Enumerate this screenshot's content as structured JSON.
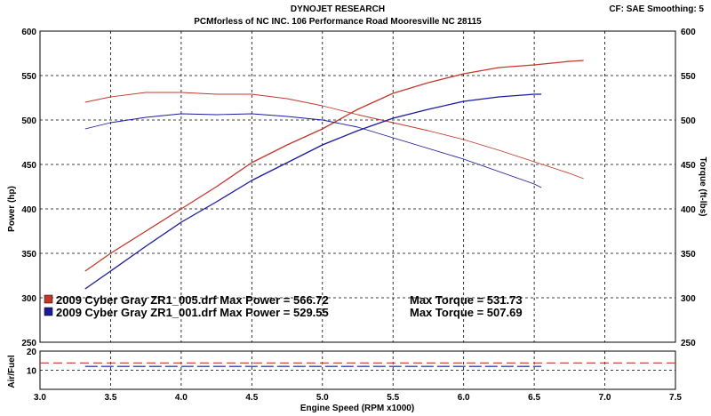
{
  "header": {
    "title": "DYNOJET RESEARCH",
    "subtitle": "PCMforless of NC INC. 106 Performance Road Mooresville NC 28115",
    "settings": "CF: SAE  Smoothing: 5"
  },
  "colors": {
    "run1": "#c0392b",
    "run2": "#1a1a9a",
    "afr_red": "#c0392b",
    "afr_blue": "#1a1a9a"
  },
  "chart_data": [
    {
      "type": "line",
      "panel": "power-torque",
      "xlabel": "Engine Speed (RPM x1000)",
      "ylabel": "Power (hp)",
      "y2label": "Torque (ft-lbs)",
      "xlim": [
        3.0,
        7.5
      ],
      "ylim": [
        250,
        600
      ],
      "y2lim": [
        250,
        600
      ],
      "grid": true,
      "legend": "bottom-left",
      "xticks": [
        "3.0",
        "3.5",
        "4.0",
        "4.5",
        "5.0",
        "5.5",
        "6.0",
        "6.5",
        "7.0",
        "7.5"
      ],
      "yticks": [
        "250",
        "300",
        "350",
        "400",
        "450",
        "500",
        "550",
        "600"
      ],
      "y2ticks": [
        "250",
        "300",
        "350",
        "400",
        "450",
        "500",
        "550",
        "600"
      ],
      "legend_entries": [
        {
          "label": "2009 Cyber Gray ZR1_005.drf Max Power = 566.72",
          "torque": "Max Torque = 531.73",
          "color_key": "run1"
        },
        {
          "label": "2009 Cyber Gray ZR1_001.drf Max Power = 529.55",
          "torque": "Max Torque = 507.69",
          "color_key": "run2"
        }
      ],
      "series": [
        {
          "name": "2009 Cyber Gray ZR1_005.drf",
          "metric": "Power",
          "color_key": "run1",
          "x": [
            3.32,
            3.5,
            3.75,
            4.0,
            4.25,
            4.5,
            4.75,
            5.0,
            5.25,
            5.5,
            5.75,
            6.0,
            6.25,
            6.5,
            6.75,
            6.85
          ],
          "y": [
            330,
            350,
            375,
            400,
            425,
            452,
            472,
            490,
            512,
            530,
            542,
            552,
            559,
            562,
            566,
            567
          ]
        },
        {
          "name": "2009 Cyber Gray ZR1_005.drf",
          "metric": "Torque",
          "color_key": "run1",
          "x": [
            3.32,
            3.5,
            3.75,
            4.0,
            4.25,
            4.5,
            4.75,
            5.0,
            5.25,
            5.5,
            5.75,
            6.0,
            6.25,
            6.5,
            6.75,
            6.85
          ],
          "y": [
            520,
            526,
            531,
            531,
            529,
            529,
            524,
            516,
            506,
            497,
            488,
            478,
            466,
            453,
            440,
            434
          ]
        },
        {
          "name": "2009 Cyber Gray ZR1_001.drf",
          "metric": "Power",
          "color_key": "run2",
          "x": [
            3.32,
            3.5,
            3.75,
            4.0,
            4.25,
            4.5,
            4.75,
            5.0,
            5.25,
            5.5,
            5.75,
            6.0,
            6.25,
            6.5,
            6.55
          ],
          "y": [
            310,
            330,
            358,
            385,
            408,
            432,
            452,
            472,
            488,
            502,
            512,
            521,
            526,
            529,
            529
          ]
        },
        {
          "name": "2009 Cyber Gray ZR1_001.drf",
          "metric": "Torque",
          "color_key": "run2",
          "x": [
            3.32,
            3.5,
            3.75,
            4.0,
            4.25,
            4.5,
            4.75,
            5.0,
            5.25,
            5.5,
            5.75,
            6.0,
            6.25,
            6.5,
            6.55
          ],
          "y": [
            490,
            497,
            503,
            507,
            506,
            507,
            504,
            500,
            492,
            480,
            468,
            456,
            442,
            428,
            424
          ]
        }
      ]
    },
    {
      "type": "line",
      "panel": "air-fuel",
      "ylabel": "Air/Fuel",
      "xlabel": "Engine Speed (RPM x1000)",
      "xlim": [
        3.0,
        7.5
      ],
      "ylim": [
        0,
        20
      ],
      "grid": true,
      "xticks": [
        "3.0",
        "3.5",
        "4.0",
        "4.5",
        "5.0",
        "5.5",
        "6.0",
        "6.5",
        "7.0",
        "7.5"
      ],
      "yticks": [
        "10",
        "20"
      ],
      "series": [
        {
          "name": "2009 Cyber Gray ZR1_005.drf",
          "metric": "Air/Fuel",
          "color_key": "afr_red",
          "x": [
            3.0,
            7.5
          ],
          "y": [
            13.8,
            13.8
          ]
        },
        {
          "name": "2009 Cyber Gray ZR1_001.drf",
          "metric": "Air/Fuel",
          "color_key": "afr_blue",
          "x": [
            3.32,
            6.55
          ],
          "y": [
            12.0,
            12.0
          ]
        }
      ]
    }
  ]
}
